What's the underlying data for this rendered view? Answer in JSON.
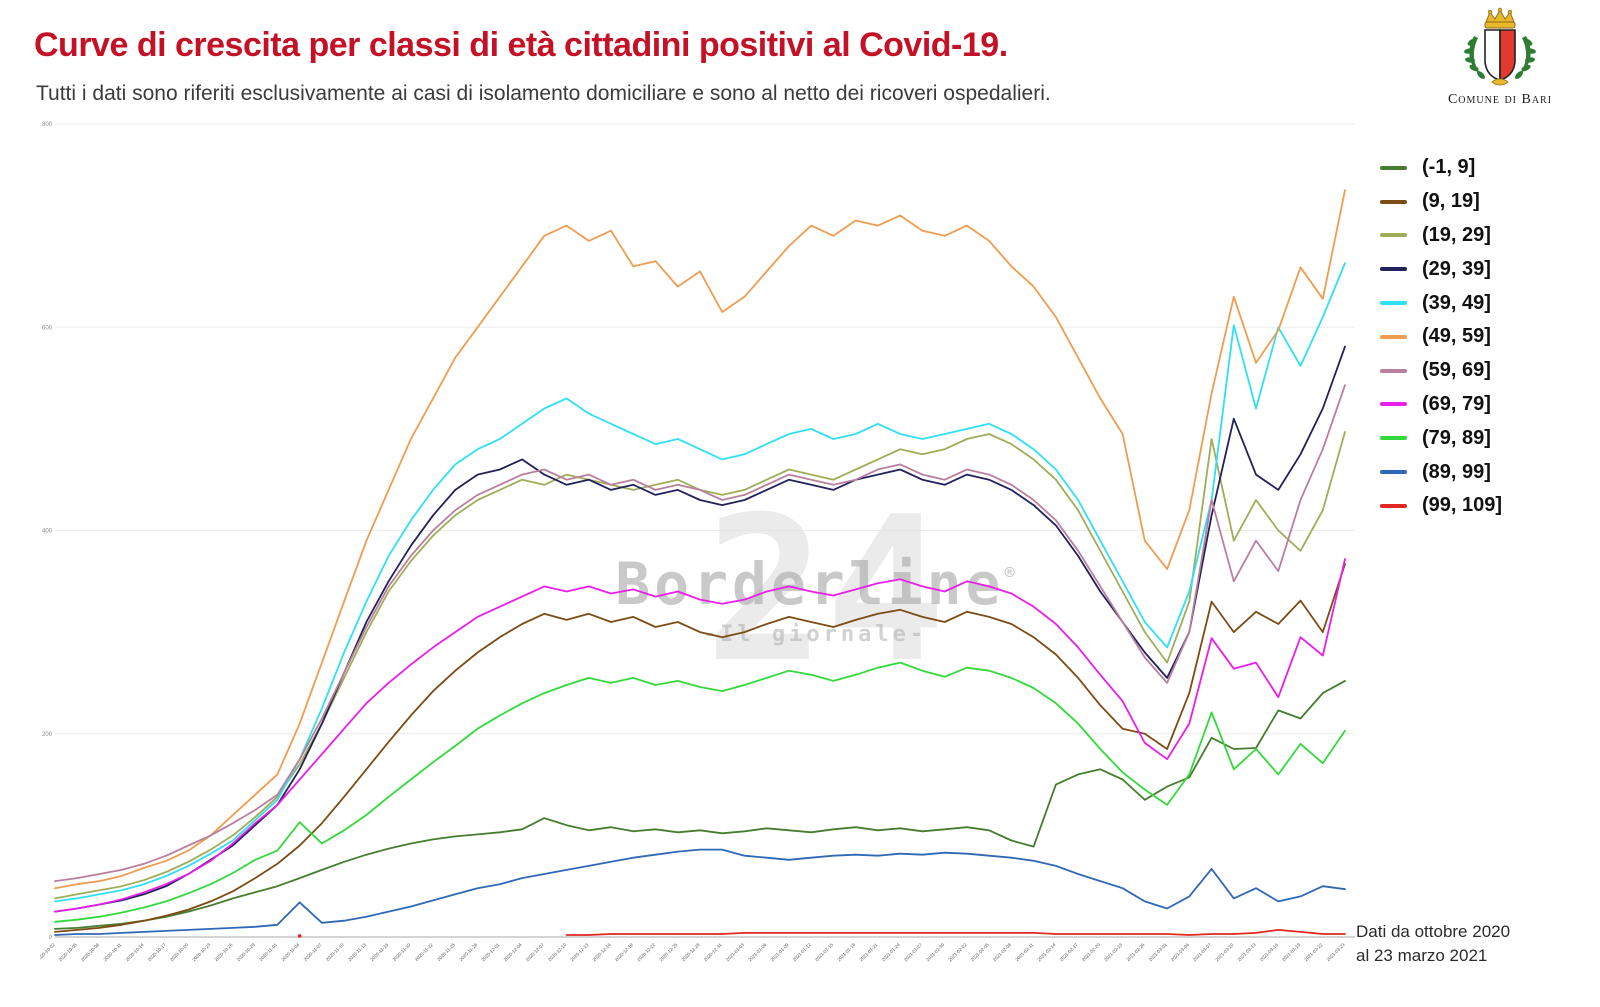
{
  "header": {
    "title": "Curve di crescita per classi di età cittadini positivi al Covid-19.",
    "subtitle": "Tutti i dati sono riferiti esclusivamente ai casi di isolamento domiciliare e sono al netto dei ricoveri ospedalieri."
  },
  "logo": {
    "caption": "Comune di Bari"
  },
  "watermark": {
    "big_number": "24",
    "name": "Borderline",
    "registered": "®",
    "tagline": "-Il giornale-"
  },
  "footnote": {
    "line1": "Dati da ottobre 2020",
    "line2": "al 23 marzo 2021"
  },
  "colors": {
    "title_red": "#c51126",
    "axis": "#bbbbbb",
    "grid": "#ececec",
    "tick_text": "#888888"
  },
  "chart_data": {
    "type": "line",
    "title": "Curve di crescita per classi di età cittadini positivi al Covid-19.",
    "xlabel": "",
    "ylabel": "",
    "ylim": [
      0,
      800
    ],
    "yticks": [
      0,
      200,
      400,
      600,
      800
    ],
    "grid": true,
    "legend_position": "right",
    "x": [
      "2020-10-02",
      "2020-10-05",
      "2020-10-08",
      "2020-10-11",
      "2020-10-14",
      "2020-10-17",
      "2020-10-20",
      "2020-10-23",
      "2020-10-26",
      "2020-10-29",
      "2020-11-01",
      "2020-11-04",
      "2020-11-07",
      "2020-11-10",
      "2020-11-13",
      "2020-11-16",
      "2020-11-19",
      "2020-11-22",
      "2020-11-25",
      "2020-11-28",
      "2020-12-01",
      "2020-12-04",
      "2020-12-07",
      "2020-12-10",
      "2020-12-13",
      "2020-12-16",
      "2020-12-19",
      "2020-12-22",
      "2020-12-25",
      "2020-12-28",
      "2020-12-31",
      "2021-01-03",
      "2021-01-06",
      "2021-01-09",
      "2021-01-12",
      "2021-01-15",
      "2021-01-18",
      "2021-01-21",
      "2021-01-24",
      "2021-01-27",
      "2021-01-30",
      "2021-02-02",
      "2021-02-05",
      "2021-02-08",
      "2021-02-11",
      "2021-02-14",
      "2021-02-17",
      "2021-02-20",
      "2021-02-23",
      "2021-02-26",
      "2021-03-01",
      "2021-03-04",
      "2021-03-07",
      "2021-03-10",
      "2021-03-13",
      "2021-03-16",
      "2021-03-19",
      "2021-03-22",
      "2021-03-23"
    ],
    "series": [
      {
        "name": "(-1, 9]",
        "color": "#467d2e",
        "values": [
          8,
          9,
          11,
          13,
          16,
          20,
          25,
          31,
          38,
          44,
          50,
          58,
          66,
          74,
          81,
          87,
          92,
          96,
          99,
          101,
          103,
          106,
          117,
          110,
          105,
          108,
          104,
          106,
          103,
          105,
          102,
          104,
          107,
          105,
          103,
          106,
          108,
          105,
          107,
          104,
          106,
          108,
          105,
          95,
          89,
          150,
          160,
          165,
          155,
          135,
          148,
          157,
          196,
          185,
          186,
          223,
          215,
          240,
          252
        ]
      },
      {
        "name": "(9, 19]",
        "color": "#7d4b14",
        "values": [
          5,
          7,
          9,
          12,
          16,
          21,
          27,
          35,
          45,
          58,
          72,
          90,
          112,
          138,
          165,
          192,
          218,
          242,
          262,
          280,
          295,
          308,
          318,
          312,
          318,
          310,
          315,
          305,
          310,
          300,
          295,
          300,
          308,
          315,
          310,
          305,
          312,
          318,
          322,
          315,
          310,
          320,
          315,
          308,
          295,
          278,
          255,
          228,
          205,
          200,
          185,
          240,
          330,
          300,
          320,
          308,
          331,
          300,
          367
        ]
      },
      {
        "name": "(19, 29]",
        "color": "#a0ad58",
        "values": [
          38,
          42,
          46,
          50,
          56,
          64,
          74,
          86,
          100,
          118,
          138,
          170,
          210,
          255,
          300,
          340,
          370,
          395,
          415,
          430,
          440,
          450,
          445,
          455,
          450,
          445,
          440,
          445,
          450,
          440,
          435,
          440,
          450,
          460,
          455,
          450,
          460,
          470,
          480,
          475,
          480,
          490,
          495,
          485,
          470,
          450,
          420,
          380,
          340,
          300,
          270,
          330,
          490,
          390,
          430,
          400,
          380,
          420,
          497
        ]
      },
      {
        "name": "(29, 39]",
        "color": "#22215b",
        "values": [
          25,
          28,
          32,
          36,
          42,
          50,
          62,
          76,
          90,
          110,
          130,
          165,
          210,
          260,
          310,
          350,
          385,
          415,
          440,
          455,
          460,
          470,
          455,
          445,
          450,
          440,
          445,
          435,
          440,
          430,
          425,
          430,
          440,
          450,
          445,
          440,
          450,
          455,
          460,
          450,
          445,
          455,
          450,
          440,
          425,
          405,
          375,
          340,
          310,
          280,
          255,
          300,
          415,
          510,
          455,
          440,
          475,
          520,
          581
        ]
      },
      {
        "name": "(39, 49]",
        "color": "#2fe0f2",
        "values": [
          35,
          38,
          42,
          46,
          52,
          60,
          70,
          82,
          95,
          115,
          135,
          175,
          225,
          280,
          330,
          375,
          410,
          440,
          465,
          480,
          490,
          505,
          520,
          530,
          515,
          505,
          495,
          485,
          490,
          480,
          470,
          475,
          485,
          495,
          500,
          490,
          495,
          505,
          495,
          490,
          495,
          500,
          505,
          495,
          480,
          460,
          430,
          390,
          350,
          310,
          285,
          340,
          430,
          602,
          520,
          600,
          562,
          610,
          663
        ]
      },
      {
        "name": "(49, 59]",
        "color": "#ee9d50",
        "values": [
          48,
          52,
          55,
          60,
          68,
          75,
          85,
          100,
          120,
          140,
          160,
          210,
          270,
          330,
          390,
          440,
          490,
          530,
          570,
          600,
          630,
          660,
          690,
          700,
          685,
          695,
          660,
          665,
          640,
          655,
          615,
          630,
          655,
          680,
          700,
          690,
          705,
          700,
          710,
          695,
          690,
          700,
          685,
          660,
          640,
          610,
          570,
          530,
          495,
          390,
          362,
          420,
          535,
          630,
          565,
          597,
          659,
          628,
          735
        ]
      },
      {
        "name": "(59, 69]",
        "color": "#b97f9f",
        "values": [
          55,
          58,
          62,
          66,
          72,
          80,
          90,
          100,
          112,
          125,
          140,
          175,
          215,
          260,
          305,
          345,
          375,
          400,
          420,
          435,
          445,
          455,
          460,
          450,
          455,
          445,
          450,
          440,
          445,
          440,
          430,
          435,
          445,
          455,
          450,
          445,
          450,
          460,
          465,
          455,
          450,
          460,
          455,
          445,
          430,
          410,
          380,
          345,
          310,
          275,
          250,
          300,
          430,
          350,
          390,
          360,
          430,
          480,
          543
        ]
      },
      {
        "name": "(69, 79]",
        "color": "#e91ee9",
        "values": [
          25,
          28,
          32,
          37,
          44,
          52,
          62,
          75,
          92,
          112,
          130,
          155,
          180,
          205,
          230,
          250,
          268,
          285,
          300,
          315,
          325,
          335,
          345,
          340,
          345,
          338,
          342,
          335,
          340,
          332,
          328,
          332,
          340,
          345,
          340,
          336,
          342,
          348,
          352,
          345,
          340,
          350,
          345,
          338,
          325,
          308,
          285,
          258,
          232,
          191,
          175,
          210,
          294,
          264,
          270,
          236,
          295,
          277,
          372
        ]
      },
      {
        "name": "(79, 89]",
        "color": "#33d93c",
        "values": [
          15,
          17,
          20,
          24,
          29,
          35,
          43,
          52,
          63,
          76,
          85,
          113,
          92,
          105,
          120,
          138,
          155,
          172,
          188,
          205,
          218,
          230,
          240,
          248,
          255,
          250,
          255,
          248,
          252,
          246,
          242,
          248,
          255,
          262,
          258,
          252,
          258,
          265,
          270,
          262,
          256,
          265,
          262,
          255,
          245,
          230,
          210,
          185,
          162,
          145,
          130,
          160,
          221,
          165,
          185,
          160,
          190,
          171,
          203
        ]
      },
      {
        "name": "(89, 99]",
        "color": "#2f68b5",
        "values": [
          2,
          3,
          3,
          4,
          5,
          6,
          7,
          8,
          9,
          10,
          12,
          34,
          14,
          16,
          20,
          25,
          30,
          36,
          42,
          48,
          52,
          58,
          62,
          66,
          70,
          74,
          78,
          81,
          84,
          86,
          86,
          80,
          78,
          76,
          78,
          80,
          81,
          80,
          82,
          81,
          83,
          82,
          80,
          78,
          75,
          70,
          62,
          55,
          48,
          35,
          28,
          40,
          67,
          38,
          48,
          35,
          40,
          50,
          47
        ]
      },
      {
        "name": "(99, 109]",
        "color": "#e22620",
        "values": [
          null,
          null,
          null,
          null,
          null,
          null,
          null,
          null,
          null,
          null,
          null,
          1,
          null,
          null,
          null,
          null,
          null,
          null,
          null,
          null,
          null,
          null,
          null,
          2,
          2,
          3,
          3,
          3,
          3,
          3,
          3,
          4,
          4,
          4,
          4,
          4,
          4,
          4,
          4,
          4,
          4,
          4,
          4,
          4,
          4,
          3,
          3,
          3,
          3,
          3,
          3,
          2,
          3,
          3,
          4,
          7,
          5,
          3,
          3
        ]
      }
    ]
  }
}
